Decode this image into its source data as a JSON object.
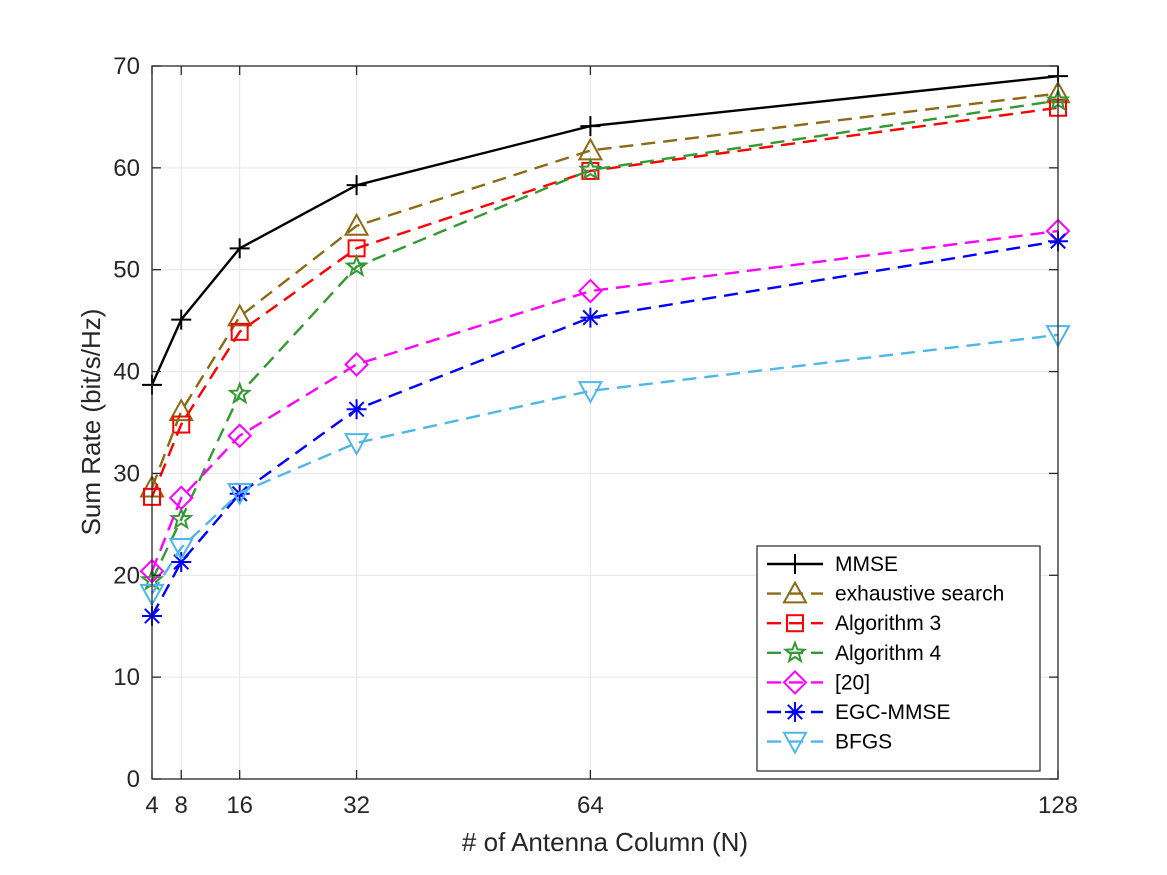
{
  "chart_data": {
    "type": "line",
    "title": "",
    "xlabel": "# of Antenna Column (N)",
    "ylabel": "Sum Rate (bit/s/Hz)",
    "x": [
      4,
      8,
      16,
      32,
      64,
      128
    ],
    "xticks": [
      "4",
      "8",
      "16",
      "32",
      "64",
      "128"
    ],
    "xlim": [
      4,
      128
    ],
    "ylim": [
      0,
      70
    ],
    "yticks": [
      "0",
      "10",
      "20",
      "30",
      "40",
      "50",
      "60",
      "70"
    ],
    "grid": true,
    "legend_position": "bottom-right",
    "series": [
      {
        "name": "MMSE",
        "color": "#000000",
        "dash": "solid",
        "marker": "plus",
        "values": [
          38.7,
          45.1,
          52.1,
          58.3,
          64.1,
          69.0
        ]
      },
      {
        "name": "exhaustive search",
        "color": "#8c6a14",
        "dash": "dashed",
        "marker": "triangle-up",
        "values": [
          28.6,
          36.1,
          45.4,
          54.3,
          61.7,
          67.3
        ]
      },
      {
        "name": "Algorithm 3",
        "color": "#ff0000",
        "dash": "dashed",
        "marker": "square",
        "values": [
          27.7,
          34.8,
          43.9,
          52.1,
          59.7,
          65.9
        ]
      },
      {
        "name": "Algorithm 4",
        "color": "#339933",
        "dash": "dashed",
        "marker": "pentagram",
        "values": [
          19.5,
          25.5,
          37.8,
          50.3,
          59.8,
          66.6
        ]
      },
      {
        "name": "[20]",
        "color": "#ff00ff",
        "dash": "dashed",
        "marker": "diamond",
        "values": [
          20.4,
          27.6,
          33.7,
          40.7,
          47.9,
          53.8
        ]
      },
      {
        "name": "EGC-MMSE",
        "color": "#0000ff",
        "dash": "dashed",
        "marker": "asterisk",
        "values": [
          16.0,
          21.3,
          28.0,
          36.3,
          45.3,
          52.8
        ]
      },
      {
        "name": "BFGS",
        "color": "#4db8e8",
        "dash": "dashed",
        "marker": "triangle-down",
        "values": [
          18.2,
          22.7,
          28.1,
          33.0,
          38.1,
          43.6
        ]
      }
    ]
  }
}
